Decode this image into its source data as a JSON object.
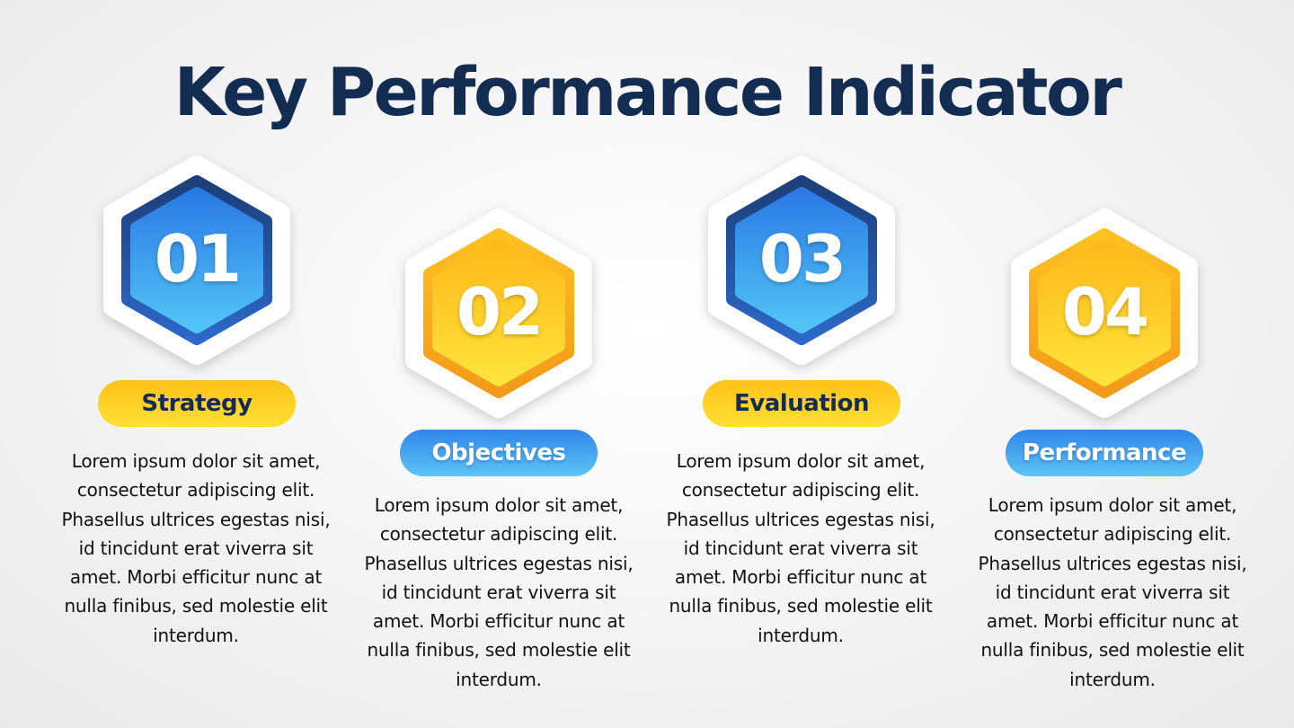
{
  "title": "Key Performance Indicator",
  "colors": {
    "title": "#132c52",
    "blue_dark": "#1b4a93",
    "blue_light": "#4ec3f7",
    "gold_dark": "#f9a81b",
    "gold_light": "#ffe23a"
  },
  "items": [
    {
      "number": "01",
      "label": "Strategy",
      "hex_color": "blue",
      "pill_color": "gold",
      "text": "Lorem ipsum dolor sit amet, consectetur adipiscing elit. Phasellus ultrices egestas nisi, id tincidunt erat viverra sit amet. Morbi efficitur nunc at nulla finibus, sed molestie elit interdum."
    },
    {
      "number": "02",
      "label": "Objectives",
      "hex_color": "gold",
      "pill_color": "blue",
      "text": "Lorem ipsum dolor sit amet, consectetur adipiscing elit. Phasellus ultrices egestas nisi, id tincidunt erat viverra sit amet. Morbi efficitur nunc at nulla finibus, sed molestie elit interdum."
    },
    {
      "number": "03",
      "label": "Evaluation",
      "hex_color": "blue",
      "pill_color": "gold",
      "text": "Lorem ipsum dolor sit amet, consectetur adipiscing elit. Phasellus ultrices egestas nisi, id tincidunt erat viverra sit amet. Morbi efficitur nunc at nulla finibus, sed molestie elit interdum."
    },
    {
      "number": "04",
      "label": "Performance",
      "hex_color": "gold",
      "pill_color": "blue",
      "text": "Lorem ipsum dolor sit amet, consectetur adipiscing elit. Phasellus ultrices egestas nisi, id tincidunt erat viverra sit amet. Morbi efficitur nunc at nulla finibus, sed molestie elit interdum."
    }
  ]
}
